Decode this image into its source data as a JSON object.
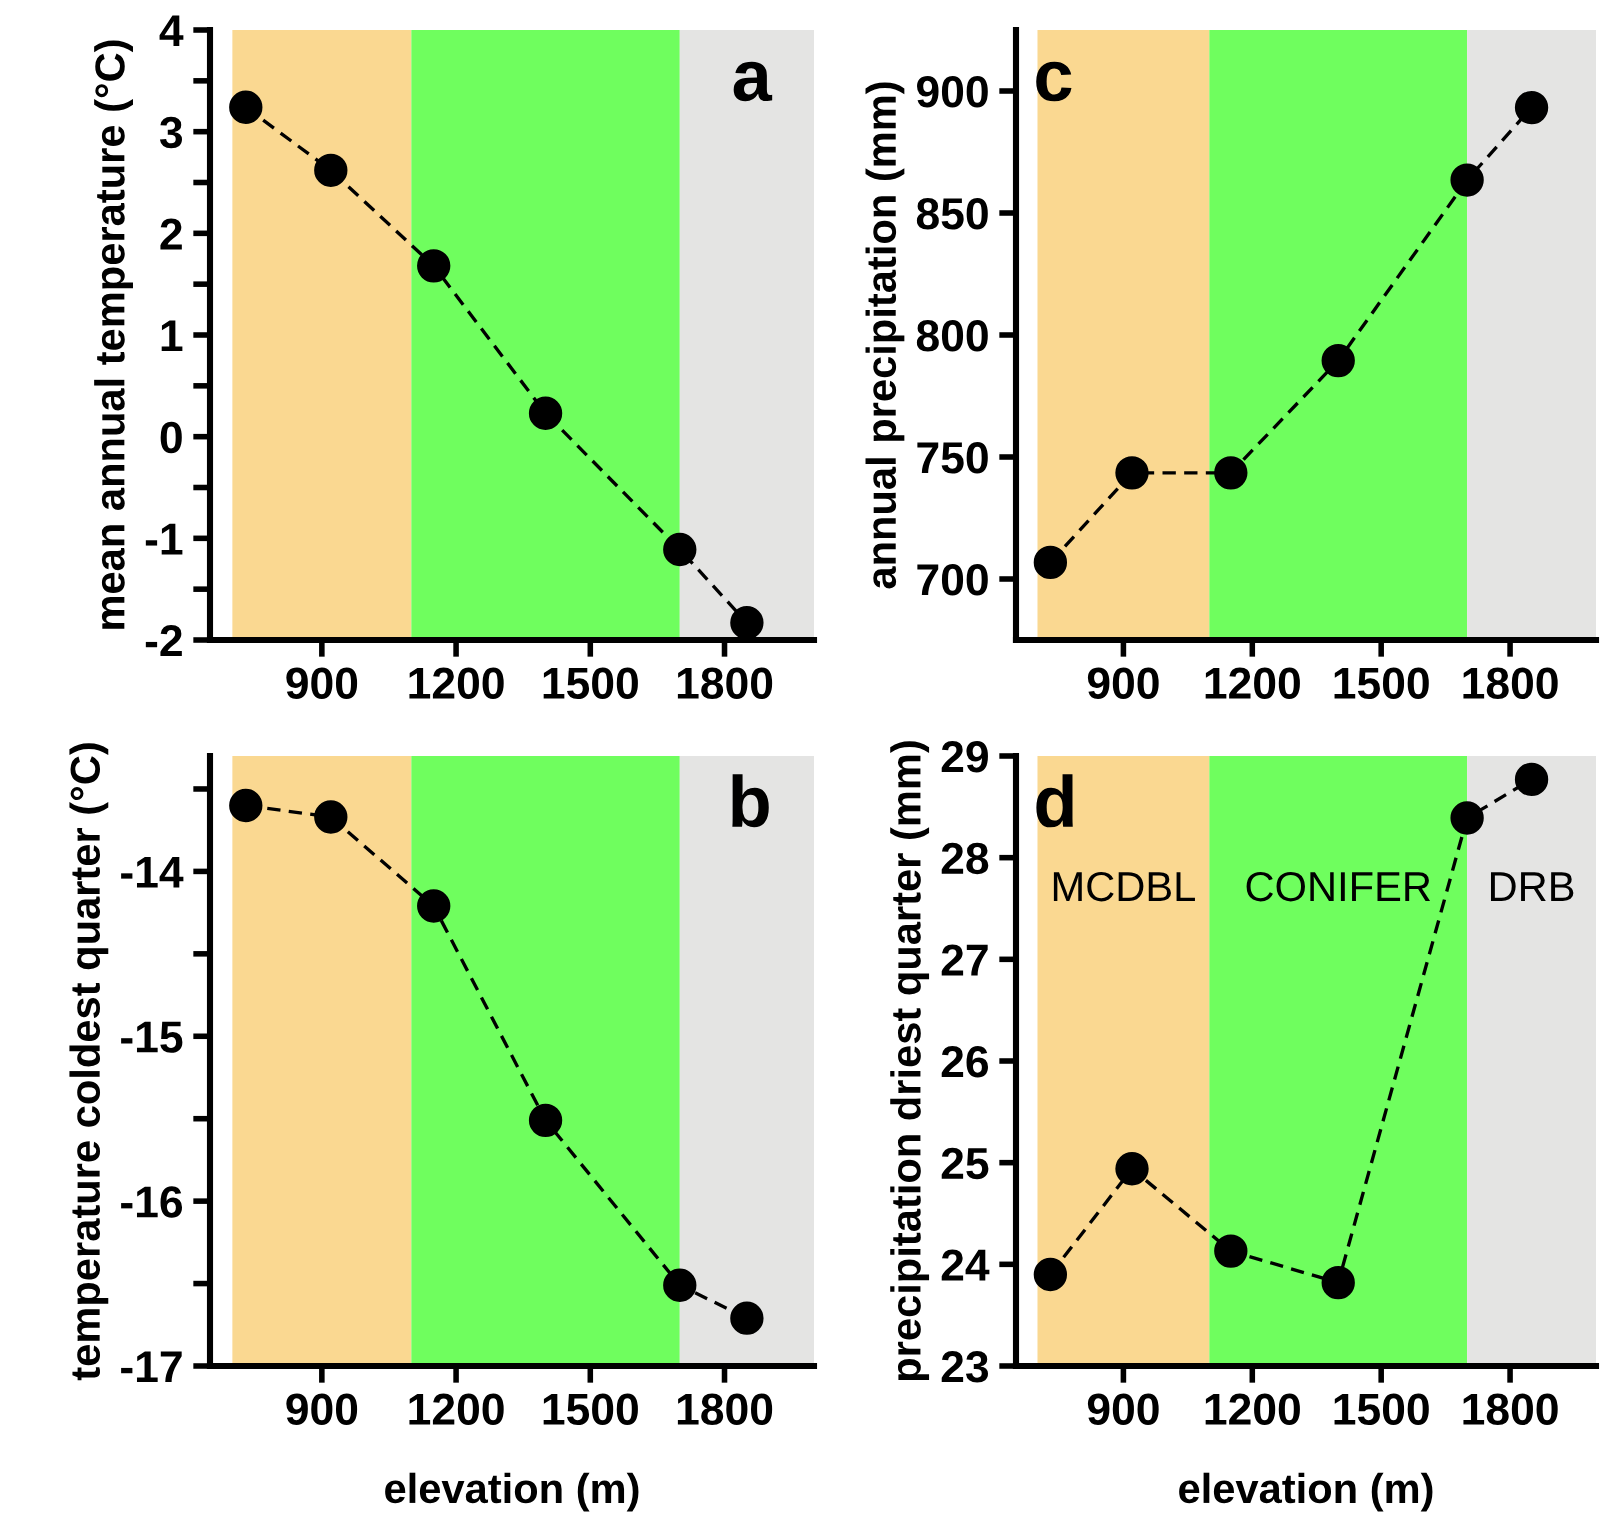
{
  "chart_data": [
    {
      "type": "line",
      "title": "a",
      "ylabel": "mean annual temperature (°C)",
      "x": [
        730,
        920,
        1150,
        1400,
        1700,
        1850
      ],
      "values": [
        3.24,
        2.62,
        1.68,
        0.23,
        -1.11,
        -1.83
      ],
      "color": "#000000",
      "marker": "circle",
      "line_style": "dashed",
      "xlim": [
        650,
        2000
      ],
      "xticks": [
        900,
        1200,
        1500,
        1800
      ],
      "ylim": [
        -2,
        4
      ],
      "yticks": [
        -2,
        {
          "value": -1.5,
          "label": null
        },
        -1,
        {
          "value": -0.5,
          "label": null
        },
        0,
        {
          "value": 0.5,
          "label": null
        },
        1,
        {
          "value": 1.5,
          "label": null
        },
        2,
        {
          "value": 2.5,
          "label": null
        },
        3,
        {
          "value": 3.5,
          "label": null
        },
        4
      ],
      "grid": false,
      "bands": [
        {
          "axis": "x",
          "from": 700,
          "to": 1100,
          "color": "#fad891"
        },
        {
          "axis": "x",
          "from": 1100,
          "to": 1700,
          "color": "#6ffe5e"
        },
        {
          "axis": "x",
          "from": 1700,
          "to": 2000,
          "color": "#e4e4e3"
        }
      ]
    },
    {
      "type": "line",
      "title": "c",
      "ylabel": "annual precipitation (mm)",
      "x": [
        730,
        920,
        1150,
        1400,
        1700,
        1850
      ],
      "values": [
        706.8,
        743.5,
        743.5,
        789.5,
        863.5,
        893.2
      ],
      "color": "#000000",
      "marker": "circle",
      "line_style": "dashed",
      "xlim": [
        650,
        2000
      ],
      "xticks": [
        900,
        1200,
        1500,
        1800
      ],
      "ylim": [
        675,
        925
      ],
      "yticks": [
        700,
        750,
        800,
        850,
        900
      ],
      "grid": false,
      "bands": [
        {
          "axis": "x",
          "from": 700,
          "to": 1100,
          "color": "#fad891"
        },
        {
          "axis": "x",
          "from": 1100,
          "to": 1700,
          "color": "#6ffe5e"
        },
        {
          "axis": "x",
          "from": 1700,
          "to": 2000,
          "color": "#e4e4e3"
        }
      ]
    },
    {
      "type": "line",
      "title": "b",
      "xlabel": "elevation (m)",
      "ylabel": "temperature coldest quarter (°C)",
      "x": [
        730,
        920,
        1150,
        1400,
        1700,
        1850
      ],
      "values": [
        -13.6,
        -13.67,
        -14.21,
        -15.51,
        -16.51,
        -16.71
      ],
      "color": "#000000",
      "marker": "circle",
      "line_style": "dashed",
      "xlim": [
        650,
        2000
      ],
      "xticks": [
        900,
        1200,
        1500,
        1800
      ],
      "ylim": [
        -17,
        -13.3
      ],
      "yticks": [
        -17,
        {
          "value": -16.5,
          "label": null
        },
        -16,
        {
          "value": -15.5,
          "label": null
        },
        -15,
        {
          "value": -14.5,
          "label": null
        },
        -14,
        {
          "value": -13.5,
          "label": null
        }
      ],
      "grid": false,
      "bands": [
        {
          "axis": "x",
          "from": 700,
          "to": 1100,
          "color": "#fad891"
        },
        {
          "axis": "x",
          "from": 1100,
          "to": 1700,
          "color": "#6ffe5e"
        },
        {
          "axis": "x",
          "from": 1700,
          "to": 2000,
          "color": "#e4e4e3"
        }
      ]
    },
    {
      "type": "line",
      "title": "d",
      "xlabel": "elevation (m)",
      "ylabel": "precipitation driest quarter (mm)",
      "x": [
        730,
        920,
        1150,
        1400,
        1700,
        1850
      ],
      "values": [
        23.9,
        24.94,
        24.13,
        23.82,
        28.39,
        28.77
      ],
      "color": "#000000",
      "marker": "circle",
      "line_style": "dashed",
      "xlim": [
        650,
        2000
      ],
      "xticks": [
        900,
        1200,
        1500,
        1800
      ],
      "ylim": [
        23,
        29
      ],
      "yticks": [
        23,
        24,
        25,
        26,
        27,
        28,
        29
      ],
      "grid": false,
      "bands": [
        {
          "axis": "x",
          "from": 700,
          "to": 1100,
          "color": "#fad891",
          "label": "MCDBL"
        },
        {
          "axis": "x",
          "from": 1100,
          "to": 1700,
          "color": "#6ffe5e",
          "label": "CONIFER"
        },
        {
          "axis": "x",
          "from": 1700,
          "to": 2000,
          "color": "#e4e4e3",
          "label": "DRB"
        }
      ]
    }
  ]
}
